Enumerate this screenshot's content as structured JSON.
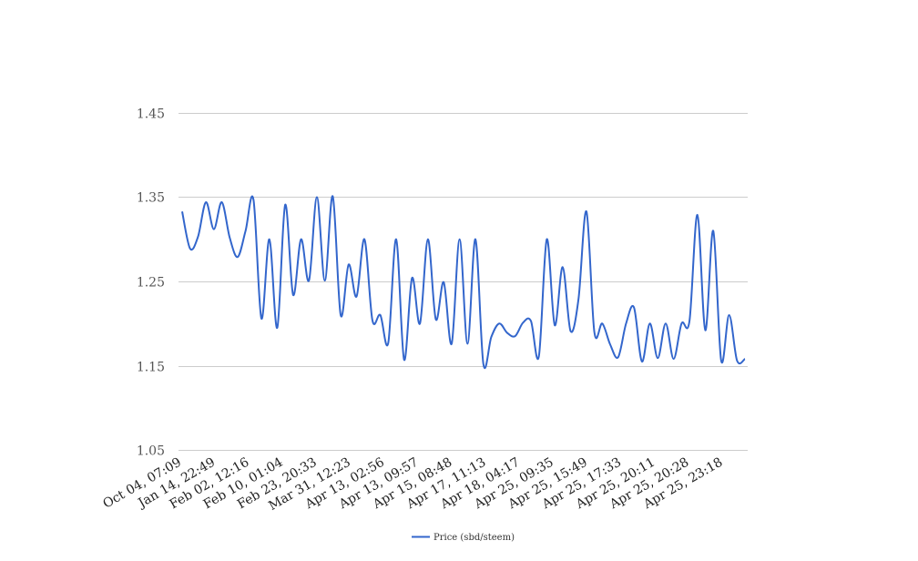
{
  "chart_data": {
    "type": "line",
    "title": "",
    "xlabel": "",
    "ylabel": "",
    "ylim": [
      1.05,
      1.45
    ],
    "y_ticks": [
      "1.45",
      "1.35",
      "1.25",
      "1.15",
      "1.05"
    ],
    "grid": true,
    "legend_position": "bottom",
    "x_tick_labels": [
      "Oct 04, 07:09",
      "Jan 14, 22:49",
      "Feb 02, 12:16",
      "Feb 10, 01:04",
      "Feb 23, 20:33",
      "Mar 31, 12:23",
      "Apr 13, 02:56",
      "Apr 13, 09:57",
      "Apr 15, 08:48",
      "Apr 17, 11:13",
      "Apr 18, 04:17",
      "Apr 25, 09:35",
      "Apr 25, 15:49",
      "Apr 25, 17:33",
      "Apr 25, 20:11",
      "Apr 25, 20:28",
      "Apr 25, 23:18"
    ],
    "series": [
      {
        "name": "Price (sbd/steem)",
        "color": "#3366cc",
        "values": [
          1.333,
          1.289,
          1.303,
          1.344,
          1.312,
          1.344,
          1.302,
          1.279,
          1.31,
          1.347,
          1.206,
          1.3,
          1.195,
          1.341,
          1.234,
          1.3,
          1.251,
          1.35,
          1.251,
          1.351,
          1.21,
          1.27,
          1.232,
          1.3,
          1.204,
          1.21,
          1.177,
          1.3,
          1.157,
          1.254,
          1.2,
          1.3,
          1.205,
          1.249,
          1.176,
          1.3,
          1.176,
          1.3,
          1.152,
          1.184,
          1.2,
          1.189,
          1.185,
          1.201,
          1.203,
          1.161,
          1.3,
          1.198,
          1.267,
          1.191,
          1.229,
          1.333,
          1.19,
          1.2,
          1.175,
          1.16,
          1.2,
          1.219,
          1.155,
          1.2,
          1.159,
          1.2,
          1.158,
          1.2,
          1.203,
          1.329,
          1.192,
          1.31,
          1.156,
          1.21,
          1.156,
          1.158
        ]
      }
    ]
  }
}
